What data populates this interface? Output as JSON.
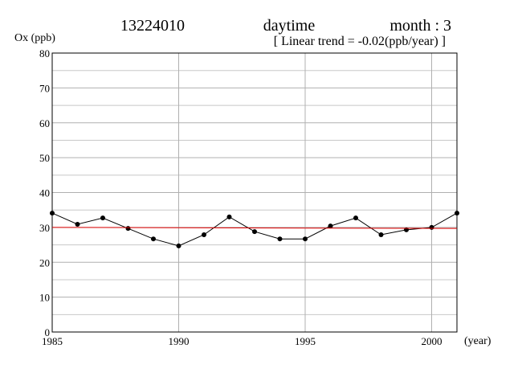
{
  "chart_data": {
    "type": "line",
    "title": "13224010",
    "period": "daytime",
    "month": "month : 3",
    "subtitle": "[ Linear trend = -0.02(ppb/year) ]",
    "y_label": "Ox (ppb)",
    "x_label": "(year)",
    "xlim": [
      1985,
      2001
    ],
    "xticks": [
      1985,
      1990,
      1995,
      2000
    ],
    "ylim": [
      0,
      80
    ],
    "yticks": [
      0,
      10,
      20,
      30,
      40,
      50,
      60,
      70,
      80
    ],
    "y_minor_grid": [
      5,
      15,
      25,
      35,
      45,
      55,
      65,
      75
    ],
    "grid": true,
    "series": [
      {
        "name": "Ox",
        "color": "#000000",
        "markers": true,
        "x": [
          1985,
          1986,
          1987,
          1988,
          1989,
          1990,
          1991,
          1992,
          1993,
          1994,
          1995,
          1996,
          1997,
          1998,
          1999,
          2000,
          2001
        ],
        "values": [
          34.1,
          30.9,
          32.7,
          29.7,
          26.7,
          24.7,
          27.9,
          33.0,
          28.8,
          26.7,
          26.7,
          30.4,
          32.7,
          27.9,
          29.3,
          30.0,
          34.1
        ]
      },
      {
        "name": "Linear trend",
        "color": "#e00000",
        "markers": false,
        "x": [
          1985,
          2001
        ],
        "values": [
          30.0,
          29.7
        ]
      }
    ]
  }
}
